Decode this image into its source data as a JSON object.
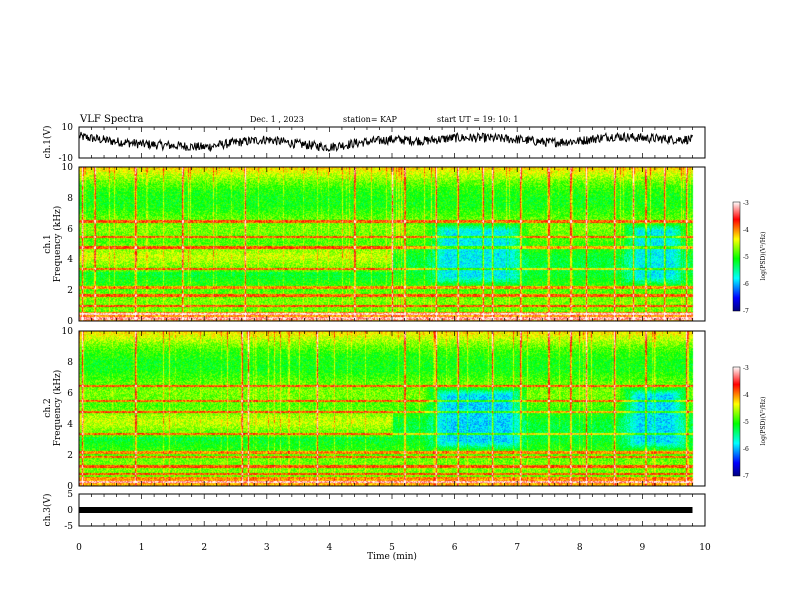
{
  "header": {
    "title": "VLF Spectra",
    "date": "Dec. 1 , 2023",
    "station": "station= KAP",
    "start_time": "start UT =  19: 10: 1"
  },
  "chart_data": [
    {
      "type": "line",
      "panel": "ch1-waveform",
      "ylabel": "ch.1(V)",
      "ylim": [
        -10,
        10
      ],
      "yticks": [
        "10",
        "-10"
      ],
      "xlim": [
        0,
        10
      ],
      "x_extent_min": 9.8,
      "baseline_shape": [
        {
          "x": 0.0,
          "y": 4
        },
        {
          "x": 0.5,
          "y": 1
        },
        {
          "x": 1.0,
          "y": -1
        },
        {
          "x": 1.5,
          "y": -2
        },
        {
          "x": 2.0,
          "y": -3
        },
        {
          "x": 2.5,
          "y": 0
        },
        {
          "x": 3.0,
          "y": 2
        },
        {
          "x": 3.5,
          "y": -1
        },
        {
          "x": 4.0,
          "y": -3
        },
        {
          "x": 4.5,
          "y": 0
        },
        {
          "x": 5.0,
          "y": 2
        },
        {
          "x": 5.5,
          "y": 1
        },
        {
          "x": 6.0,
          "y": 3
        },
        {
          "x": 6.5,
          "y": 3
        },
        {
          "x": 7.0,
          "y": 2
        },
        {
          "x": 7.5,
          "y": 0
        },
        {
          "x": 8.0,
          "y": 1
        },
        {
          "x": 8.5,
          "y": 4
        },
        {
          "x": 9.0,
          "y": 3
        },
        {
          "x": 9.5,
          "y": 2
        },
        {
          "x": 9.8,
          "y": 2
        }
      ],
      "noise_amplitude": 3,
      "color": "#000000"
    },
    {
      "type": "heatmap",
      "panel": "ch1-spectrogram",
      "ylabel": "ch.1\nFrequency  (kHz)",
      "ylim": [
        0,
        10
      ],
      "yticks": [
        "0",
        "2",
        "4",
        "6",
        "8",
        "10"
      ],
      "xlim": [
        0,
        10
      ],
      "x_extent_min": 9.8,
      "colorbar": {
        "label": "log(PSD)(V²/Hz)",
        "range": [
          -7,
          -3
        ],
        "ticks": [
          "-3",
          "-4",
          "-5",
          "-6",
          "-7"
        ],
        "colors": [
          "#0000ff",
          "#00ffff",
          "#00ff00",
          "#ffff00",
          "#ff0000",
          "#ffffff"
        ]
      },
      "quiet_regions": [
        {
          "t0": 5.5,
          "t1": 7.2,
          "f0": 2.3,
          "f1": 6.5,
          "level": -5.8
        },
        {
          "t0": 8.6,
          "t1": 9.8,
          "f0": 2.3,
          "f1": 6.5,
          "level": -5.8
        }
      ],
      "emission_band": {
        "t0": 0,
        "t1": 5.0,
        "f0": 3.2,
        "f1": 5.2,
        "level": -4.6
      },
      "horizontal_lines_khz": [
        0.2,
        0.5,
        1.0,
        1.7,
        2.2,
        3.4,
        4.8,
        5.5,
        6.5
      ],
      "sferic_times_min": [
        0.05,
        0.25,
        0.9,
        1.65,
        2.65,
        4.4,
        5.0,
        5.2,
        5.7,
        6.05,
        6.45,
        6.6,
        7.05,
        7.5,
        7.85,
        8.1,
        8.55,
        8.85,
        9.05,
        9.35,
        9.7
      ]
    },
    {
      "type": "heatmap",
      "panel": "ch2-spectrogram",
      "ylabel": "ch.2\nFrequency  (kHz)",
      "ylim": [
        0,
        10
      ],
      "yticks": [
        "0",
        "2",
        "4",
        "6",
        "8",
        "10"
      ],
      "xlim": [
        0,
        10
      ],
      "x_extent_min": 9.8,
      "colorbar": {
        "label": "log(PSD)(V²/Hz)",
        "range": [
          -7,
          -3
        ],
        "ticks": [
          "-3",
          "-4",
          "-5",
          "-6",
          "-7"
        ],
        "colors": [
          "#0000ff",
          "#00ffff",
          "#00ff00",
          "#ffff00",
          "#ff0000",
          "#ffffff"
        ]
      },
      "quiet_regions": [
        {
          "t0": 5.5,
          "t1": 7.2,
          "f0": 2.3,
          "f1": 6.5,
          "level": -5.9
        },
        {
          "t0": 8.6,
          "t1": 9.8,
          "f0": 2.3,
          "f1": 6.5,
          "level": -5.9
        }
      ],
      "emission_band": {
        "t0": 0,
        "t1": 5.0,
        "f0": 3.2,
        "f1": 5.2,
        "level": -4.6
      },
      "horizontal_lines_khz": [
        0.3,
        0.8,
        1.3,
        1.9,
        2.2,
        3.4,
        4.8,
        5.5,
        6.5
      ],
      "sferic_times_min": [
        0.05,
        0.9,
        2.6,
        2.7,
        3.8,
        5.2,
        5.7,
        6.05,
        6.6,
        7.05,
        7.5,
        7.85,
        8.1,
        8.55,
        9.05,
        9.7
      ]
    },
    {
      "type": "line",
      "panel": "ch3-signal",
      "ylabel": "ch.3(V)",
      "ylim": [
        -5,
        5
      ],
      "yticks": [
        "5",
        "0",
        "-5"
      ],
      "xlim": [
        0,
        10
      ],
      "x_extent_min": 9.8,
      "level": 0,
      "color": "#000000"
    }
  ],
  "x_axis": {
    "label": "Time  (min)",
    "ticks": [
      "0",
      "1",
      "2",
      "3",
      "4",
      "5",
      "6",
      "7",
      "8",
      "9",
      "10"
    ]
  }
}
